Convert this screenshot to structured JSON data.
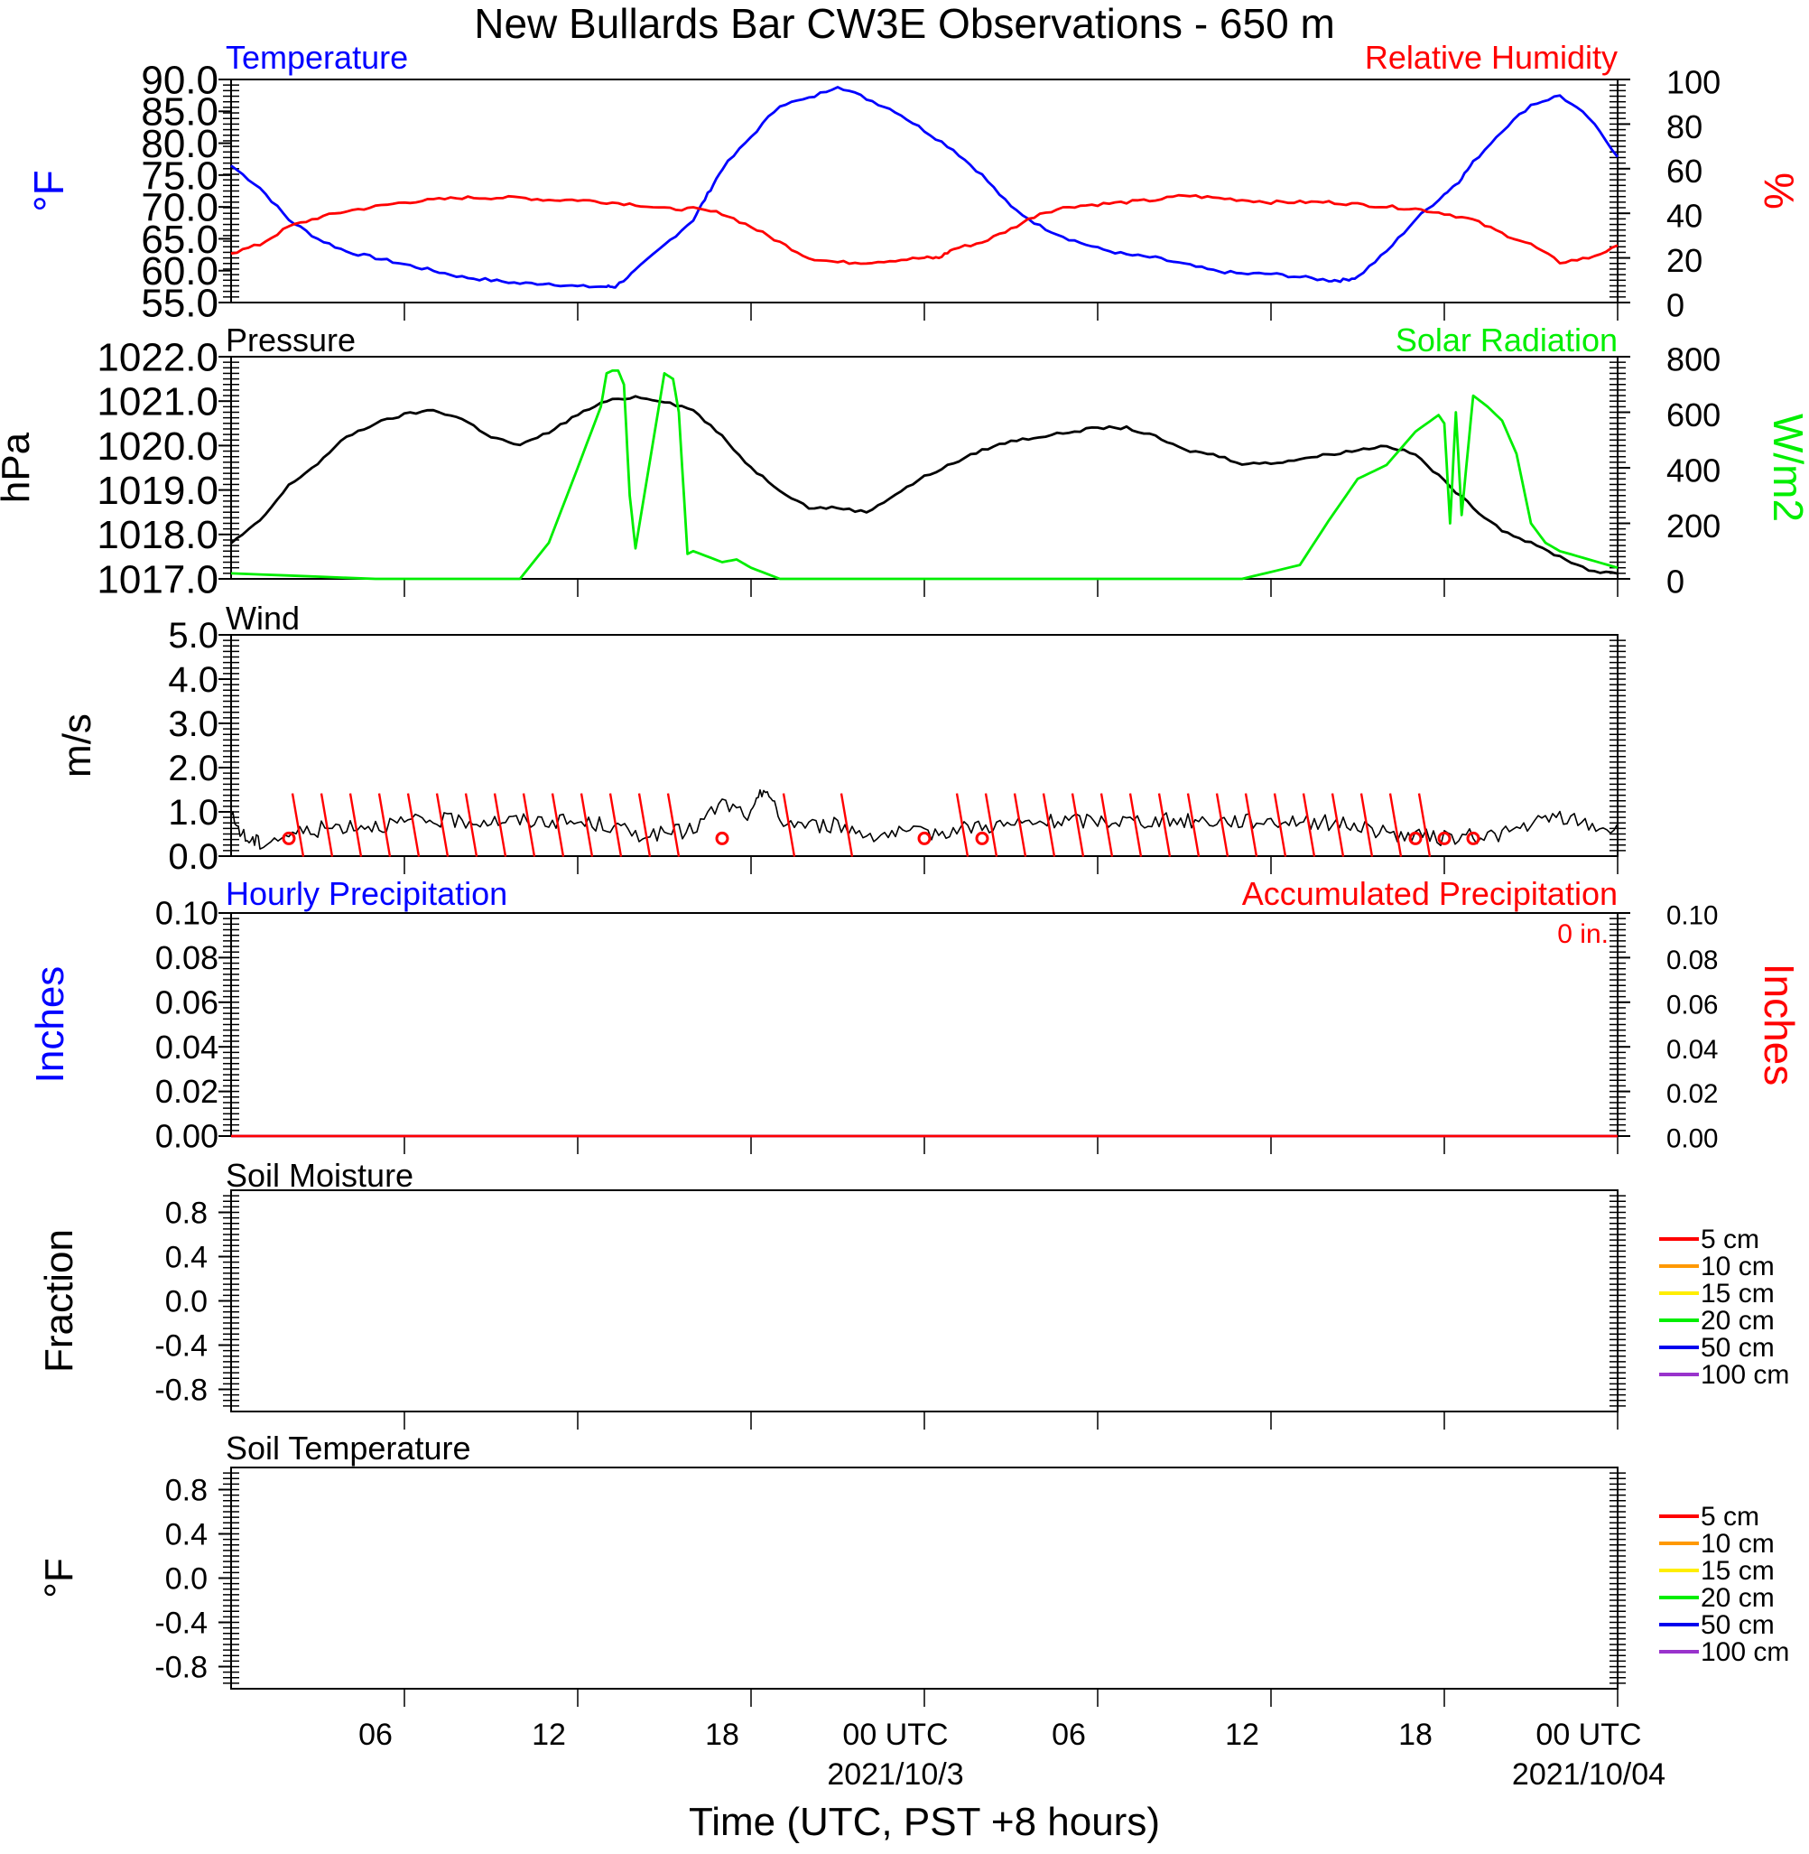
{
  "figure": {
    "title": "New Bullards Bar CW3E Observations - 650 m",
    "xlabel": "Time (UTC, PST +8 hours)",
    "x_ticks": [
      "06",
      "12",
      "18",
      "00 UTC",
      "06",
      "12",
      "18",
      "00 UTC"
    ],
    "date_labels": [
      "2021/10/3",
      "2021/10/04"
    ]
  },
  "colors": {
    "temperature": "#0000ff",
    "humidity": "#ff0000",
    "pressure": "#000000",
    "solar": "#00ee00",
    "wind": "#000000",
    "barbs": "#ff0000",
    "precip_hourly": "#0000ff",
    "precip_accum": "#ff0000",
    "depth_colors": [
      "#ff0000",
      "#ff9900",
      "#ffee00",
      "#00ee00",
      "#0000ee",
      "#9933cc"
    ]
  },
  "chart_data": [
    {
      "type": "line",
      "panel": "temperature-humidity",
      "title_left": "Temperature",
      "title_right": "Relative Humidity",
      "ylabel_left": "°F",
      "ylabel_right": "%",
      "ylim_left": [
        55,
        90
      ],
      "ylim_right": [
        0,
        100
      ],
      "yticks_left": [
        "90.0",
        "85.0",
        "80.0",
        "75.0",
        "70.0",
        "65.0",
        "60.0",
        "55.0"
      ],
      "yticks_right": [
        "100",
        "80",
        "60",
        "40",
        "20",
        "0"
      ],
      "x_range_hours": [
        -5,
        43
      ],
      "series": [
        {
          "name": "Temperature",
          "axis": "left",
          "x": [
            -5,
            -4,
            -3,
            -2,
            -1,
            0,
            1,
            2,
            3,
            4,
            5,
            6,
            7,
            8,
            8.3,
            9,
            10,
            11,
            11.5,
            12,
            13,
            14,
            15,
            16,
            17,
            18,
            19,
            20,
            21,
            22,
            23,
            24,
            25,
            26,
            27,
            28,
            29,
            30,
            31,
            32,
            33,
            33.5,
            34,
            35,
            36,
            37,
            37.5,
            38,
            39,
            40,
            41,
            42,
            43
          ],
          "y": [
            76.5,
            73,
            68,
            65,
            63,
            62,
            61,
            60,
            59,
            58.5,
            58,
            58,
            57.5,
            57.5,
            57.5,
            60,
            64,
            68,
            72,
            76,
            81,
            86,
            87,
            89,
            87,
            85,
            82,
            79,
            75,
            70,
            67,
            65,
            63.5,
            62.5,
            62,
            61,
            60,
            59.5,
            59.5,
            59,
            58.5,
            58.5,
            59,
            63,
            68,
            72,
            74,
            77,
            82,
            86,
            87.5,
            84,
            78
          ]
        },
        {
          "name": "Relative Humidity",
          "axis": "right",
          "x": [
            -5,
            -4,
            -3,
            -2,
            -1,
            0,
            1,
            2,
            3,
            4,
            5,
            6,
            7,
            8,
            9,
            10,
            11,
            12,
            13,
            14,
            15,
            16,
            17,
            18,
            19,
            19.5,
            20,
            21,
            22,
            23,
            24,
            25,
            26,
            27,
            28,
            29,
            30,
            31,
            32,
            33,
            34,
            35,
            36,
            37,
            38,
            39,
            40,
            41,
            42,
            43
          ],
          "y": [
            22,
            26,
            34,
            38,
            41,
            43,
            45,
            46,
            47,
            47,
            47,
            46,
            46,
            45,
            44,
            42,
            42,
            40,
            34,
            27,
            20,
            18,
            18,
            19,
            20,
            20,
            24,
            27,
            33,
            40,
            43,
            44,
            45,
            46,
            48,
            47,
            46,
            45,
            45,
            45,
            44,
            43,
            42,
            40,
            37,
            31,
            26,
            18,
            20,
            25
          ]
        }
      ]
    },
    {
      "type": "line",
      "panel": "pressure-solar",
      "title_left": "Pressure",
      "title_right": "Solar Radiation",
      "ylabel_left": "hPa",
      "ylabel_right": "W/m2",
      "ylim_left": [
        1017,
        1022
      ],
      "ylim_right": [
        0,
        800
      ],
      "yticks_left": [
        "1022.0",
        "1021.0",
        "1020.0",
        "1019.0",
        "1018.0",
        "1017.0"
      ],
      "yticks_right": [
        "800",
        "600",
        "400",
        "200",
        "0"
      ],
      "series": [
        {
          "name": "Pressure",
          "axis": "left",
          "x": [
            -5,
            -4,
            -3,
            -2,
            -1,
            0,
            1,
            2,
            3,
            4,
            5,
            6,
            7,
            8,
            9,
            10,
            11,
            12,
            13,
            14,
            15,
            16,
            17,
            18,
            19,
            20,
            21,
            22,
            23,
            24,
            25,
            26,
            27,
            28,
            29,
            30,
            31,
            32,
            33,
            34,
            35,
            36,
            37,
            38,
            39,
            40,
            41,
            42,
            43
          ],
          "y": [
            1017.8,
            1018.3,
            1019.1,
            1019.6,
            1020.2,
            1020.5,
            1020.7,
            1020.8,
            1020.6,
            1020.2,
            1020.0,
            1020.3,
            1020.7,
            1021.0,
            1021.1,
            1021.0,
            1020.8,
            1020.2,
            1019.5,
            1019.0,
            1018.6,
            1018.6,
            1018.5,
            1018.9,
            1019.3,
            1019.6,
            1019.9,
            1020.1,
            1020.2,
            1020.3,
            1020.4,
            1020.4,
            1020.2,
            1019.9,
            1019.8,
            1019.6,
            1019.6,
            1019.7,
            1019.8,
            1019.9,
            1020.0,
            1019.8,
            1019.2,
            1018.6,
            1018.1,
            1017.8,
            1017.5,
            1017.2,
            1017.1
          ]
        },
        {
          "name": "Solar Radiation",
          "axis": "right",
          "x": [
            -5,
            0,
            1,
            2,
            3,
            4,
            5,
            6,
            7,
            7.8,
            8,
            8.2,
            8.4,
            8.6,
            8.8,
            9,
            10,
            10.3,
            10.5,
            10.8,
            11,
            12,
            12.5,
            13,
            14,
            20,
            30,
            32,
            33,
            34,
            35,
            36,
            36.8,
            37,
            37.2,
            37.4,
            37.6,
            38,
            38.5,
            39,
            39.5,
            40,
            40.5,
            41,
            42,
            43
          ],
          "y": [
            20,
            0,
            0,
            0,
            0,
            0,
            0,
            130,
            400,
            620,
            740,
            750,
            750,
            700,
            300,
            110,
            740,
            720,
            600,
            90,
            100,
            60,
            70,
            40,
            0,
            0,
            0,
            50,
            210,
            360,
            410,
            530,
            590,
            560,
            200,
            600,
            230,
            660,
            620,
            570,
            450,
            200,
            130,
            100,
            70,
            40
          ]
        }
      ]
    },
    {
      "type": "line",
      "panel": "wind",
      "title_left": "Wind",
      "ylabel_left": "m/s",
      "ylim_left": [
        0,
        5
      ],
      "yticks_left": [
        "5.0",
        "4.0",
        "3.0",
        "2.0",
        "1.0",
        "0.0"
      ],
      "series": [
        {
          "name": "Wind",
          "x": [
            -5,
            -4.5,
            -4,
            -3,
            -2,
            -1,
            0,
            1,
            2,
            3,
            4,
            5,
            6,
            7,
            8,
            9,
            10,
            11,
            12,
            13,
            13.5,
            14,
            15,
            16,
            17,
            18,
            19,
            20,
            21,
            22,
            23,
            24,
            25,
            26,
            27,
            28,
            29,
            30,
            31,
            32,
            33,
            34,
            35,
            36,
            37,
            38,
            39,
            40,
            41,
            42,
            43
          ],
          "y": [
            0.9,
            0.4,
            0.3,
            0.5,
            0.6,
            0.7,
            0.7,
            0.75,
            0.8,
            0.8,
            0.8,
            0.8,
            0.8,
            0.75,
            0.7,
            0.5,
            0.5,
            0.6,
            1.2,
            0.9,
            1.6,
            0.8,
            0.7,
            0.7,
            0.5,
            0.5,
            0.5,
            0.6,
            0.7,
            0.7,
            0.75,
            0.8,
            0.8,
            0.8,
            0.8,
            0.8,
            0.8,
            0.8,
            0.8,
            0.8,
            0.75,
            0.7,
            0.5,
            0.45,
            0.4,
            0.45,
            0.5,
            0.7,
            0.9,
            0.7,
            0.6
          ]
        }
      ],
      "barbs_hours": [
        -2.5,
        -1.5,
        -0.5,
        0.5,
        1.5,
        2.5,
        3.5,
        4.5,
        5.5,
        6.5,
        7.5,
        8.5,
        9.5,
        10.5,
        14.5,
        16.5,
        20.5,
        21.5,
        22.5,
        23.5,
        24.5,
        25.5,
        26.5,
        27.5,
        28.5,
        29.5,
        30.5,
        31.5,
        32.5,
        33.5,
        34.5,
        35.5,
        36.5
      ],
      "calm_hours": [
        -3,
        12,
        19,
        21,
        36,
        37,
        38
      ]
    },
    {
      "type": "line",
      "panel": "precipitation",
      "title_left": "Hourly Precipitation",
      "title_right": "Accumulated Precipitation",
      "annotation": "0 in.",
      "ylabel_left": "Inches",
      "ylabel_right": "Inches",
      "ylim_left": [
        0,
        0.1
      ],
      "ylim_right": [
        0,
        0.1
      ],
      "yticks_left": [
        "0.10",
        "0.08",
        "0.06",
        "0.04",
        "0.02",
        "0.00"
      ],
      "yticks_right": [
        "0.10",
        "0.08",
        "0.06",
        "0.04",
        "0.02",
        "0.00"
      ],
      "series": [
        {
          "name": "Hourly Precipitation",
          "axis": "left",
          "x": [
            -5,
            43
          ],
          "y": [
            0,
            0
          ]
        },
        {
          "name": "Accumulated Precipitation",
          "axis": "right",
          "x": [
            -5,
            43
          ],
          "y": [
            0,
            0
          ]
        }
      ]
    },
    {
      "type": "line",
      "panel": "soil-moisture",
      "title_left": "Soil Moisture",
      "ylabel_left": "Fraction",
      "ylim_left": [
        -1,
        1
      ],
      "yticks_left": [
        "0.8",
        "0.4",
        "0.0",
        "-0.4",
        "-0.8"
      ],
      "legend": [
        "5 cm",
        "10 cm",
        "15 cm",
        "20 cm",
        "50 cm",
        "100 cm"
      ],
      "series": []
    },
    {
      "type": "line",
      "panel": "soil-temperature",
      "title_left": "Soil Temperature",
      "ylabel_left": "°F",
      "ylim_left": [
        -1,
        1
      ],
      "yticks_left": [
        "0.8",
        "0.4",
        "0.0",
        "-0.4",
        "-0.8"
      ],
      "legend": [
        "5 cm",
        "10 cm",
        "15 cm",
        "20 cm",
        "50 cm",
        "100 cm"
      ],
      "series": []
    }
  ]
}
